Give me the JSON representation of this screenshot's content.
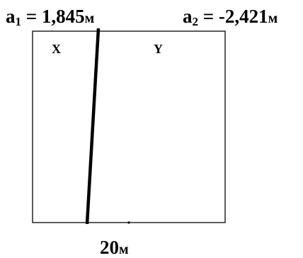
{
  "labels": {
    "a1": {
      "name": "a",
      "sub": "1",
      "eq": " = ",
      "value": "1,845",
      "unit": "м"
    },
    "a2": {
      "name": "a",
      "sub": "2",
      "eq": " = ",
      "value": "-2,421",
      "unit": "м"
    },
    "region_left": "X",
    "region_right": "Y",
    "width": {
      "value": "20",
      "unit": "м"
    }
  },
  "colors": {
    "line": "#000000",
    "frame": "#333333",
    "background": "#ffffff"
  }
}
